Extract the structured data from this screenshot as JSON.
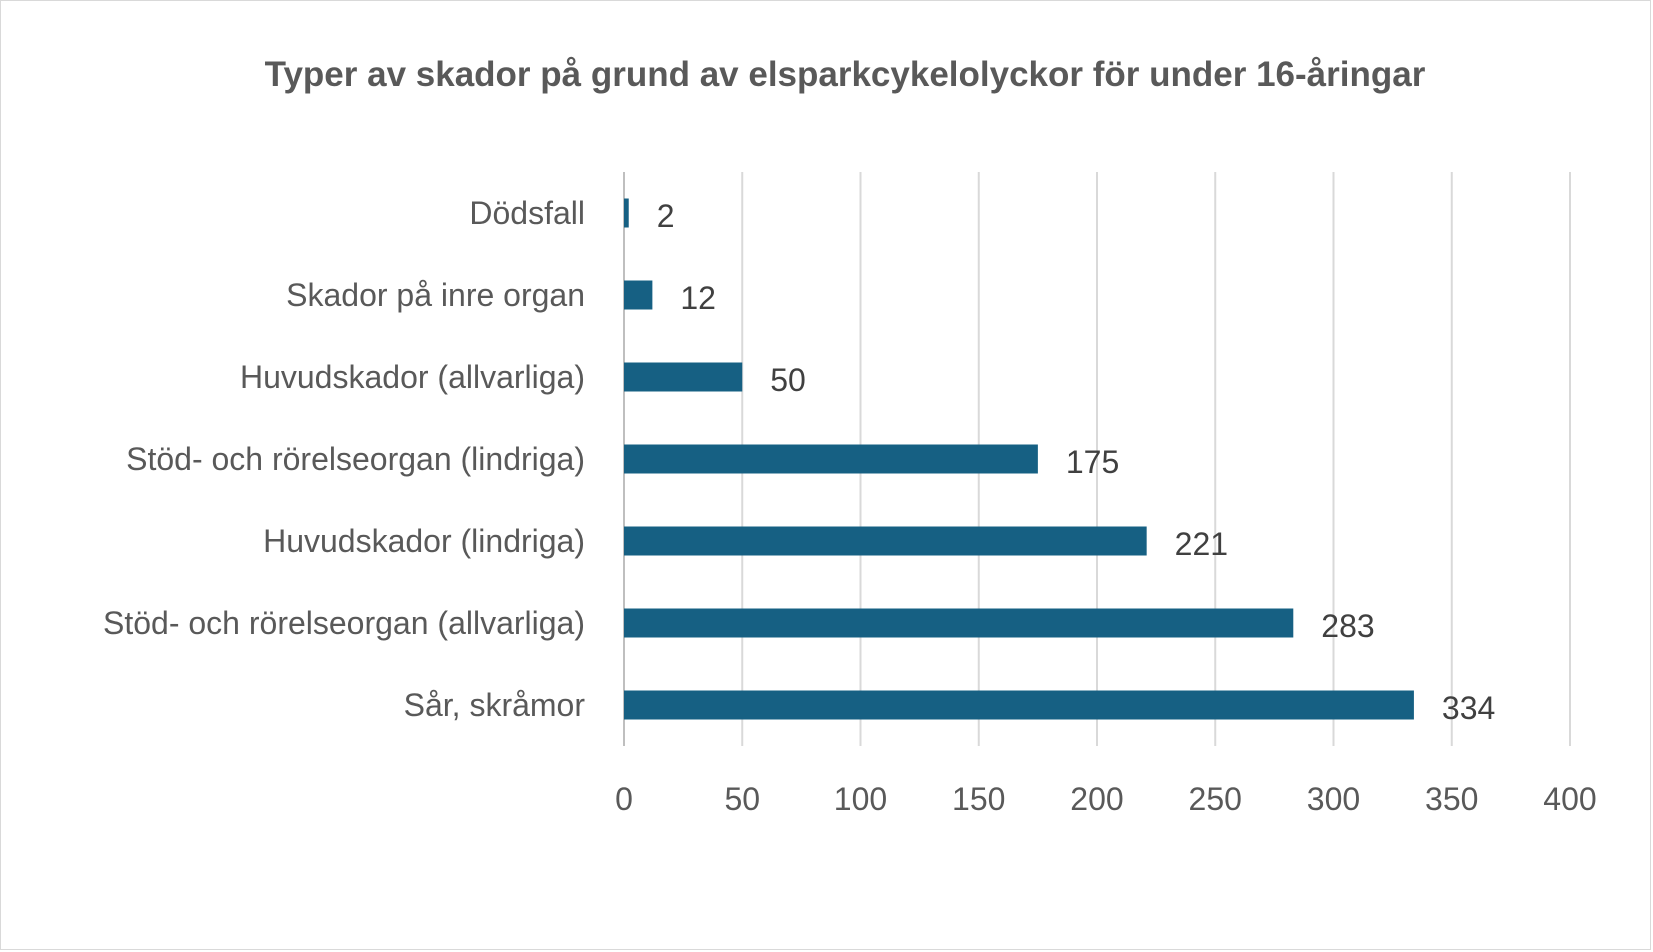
{
  "chart_data": {
    "type": "bar",
    "orientation": "horizontal",
    "title": "Typer av skador på grund av elsparkcykelolyckor för under 16-åringar",
    "categories": [
      "Dödsfall",
      "Skador på inre organ",
      "Huvudskador (allvarliga)",
      "Stöd- och rörelseorgan (lindriga)",
      "Huvudskador (lindriga)",
      "Stöd- och rörelseorgan (allvarliga)",
      "Sår, skråmor"
    ],
    "values": [
      2,
      12,
      50,
      175,
      221,
      283,
      334
    ],
    "xlim": [
      0,
      400
    ],
    "xticks": [
      0,
      50,
      100,
      150,
      200,
      250,
      300,
      350,
      400
    ],
    "grid": "vertical",
    "data_labels": true,
    "legend": "none",
    "colors": {
      "bar": "#166083",
      "grid": "#d9d9d9",
      "text": "#595959"
    }
  }
}
